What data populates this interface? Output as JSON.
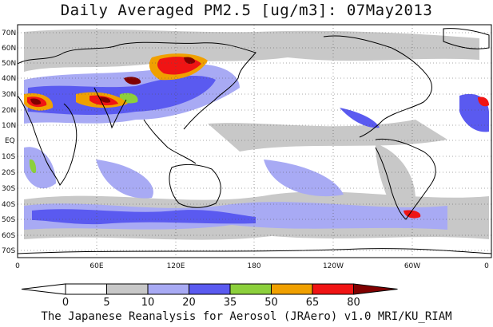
{
  "title": "Daily Averaged PM2.5 [ug/m3]: 07May2013",
  "footer": "The Japanese Reanalysis for Aerosol (JRAero) v1.0 MRI/KU_RIAM",
  "map": {
    "lat_ticks": [
      "70N",
      "60N",
      "50N",
      "40N",
      "30N",
      "20N",
      "10N",
      "EQ",
      "10S",
      "20S",
      "30S",
      "40S",
      "50S",
      "60S",
      "70S"
    ],
    "lon_ticks": [
      "0",
      "60E",
      "120E",
      "180",
      "120W",
      "60W",
      "0"
    ]
  },
  "colorbar": {
    "labels": [
      "0",
      "5",
      "10",
      "20",
      "35",
      "50",
      "65",
      "80"
    ],
    "colors": [
      "#ffffff",
      "#c8c8c8",
      "#a8aaf4",
      "#5a5af0",
      "#8cd03c",
      "#f0a000",
      "#f01414",
      "#800000"
    ]
  }
}
